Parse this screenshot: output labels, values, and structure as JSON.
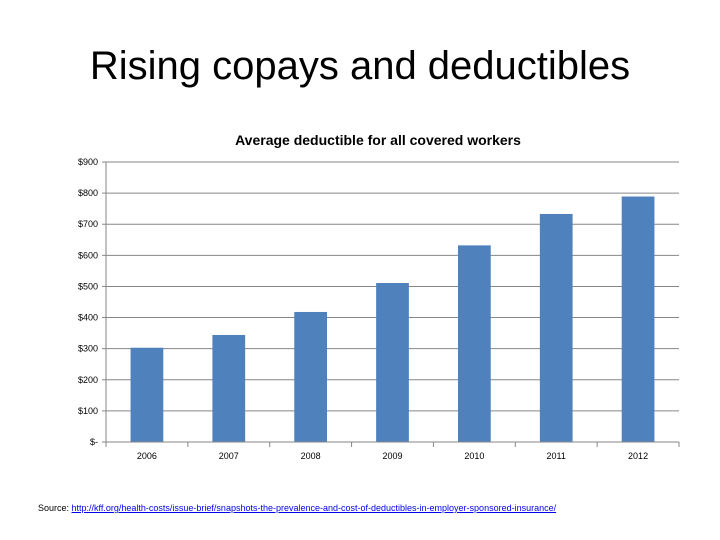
{
  "slide": {
    "title": "Rising copays and deductibles"
  },
  "source": {
    "label": "Source: ",
    "link_text": "http://kff.org/health-costs/issue-brief/snapshots-the-prevalence-and-cost-of-deductibles-in-employer-sponsored-insurance/"
  },
  "colors": {
    "bar": "#4f81bd",
    "grid": "#868686",
    "link": "#0000ee"
  },
  "chart_data": {
    "type": "bar",
    "title": "Average deductible for all covered workers",
    "xlabel": "",
    "ylabel": "",
    "categories": [
      "2006",
      "2007",
      "2008",
      "2009",
      "2010",
      "2011",
      "2012"
    ],
    "values": [
      303,
      344,
      418,
      511,
      632,
      733,
      789
    ],
    "ylim": [
      0,
      900
    ],
    "yticks": [
      0,
      100,
      200,
      300,
      400,
      500,
      600,
      700,
      800,
      900
    ],
    "ytick_labels": [
      "$-",
      "$100",
      "$200",
      "$300",
      "$400",
      "$500",
      "$600",
      "$700",
      "$800",
      "$900"
    ],
    "grid": true,
    "legend": "none"
  }
}
